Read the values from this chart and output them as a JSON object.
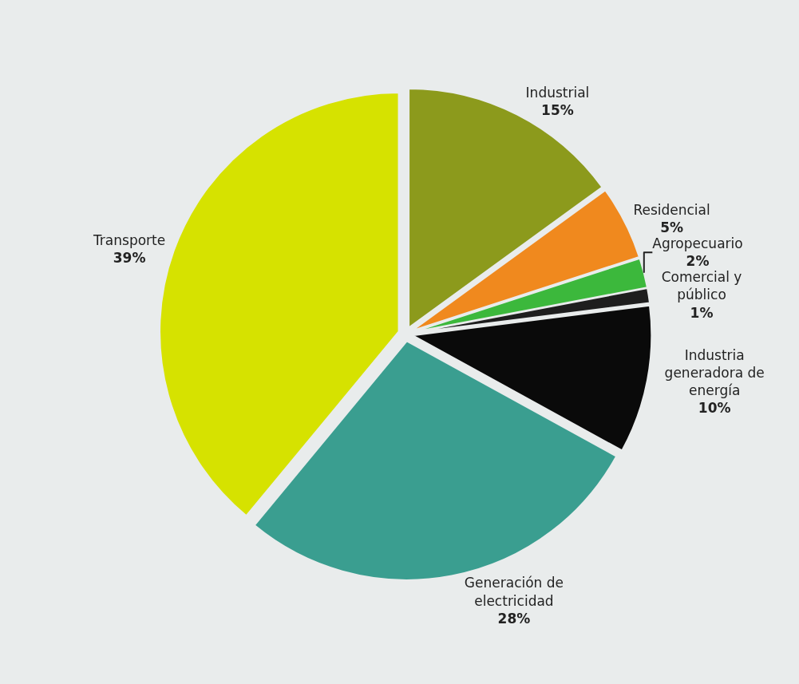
{
  "chart_data": {
    "type": "pie",
    "categories": [
      "Industrial",
      "Residencial",
      "Agropecuario",
      "Comercial y público",
      "Industria generadora de energía",
      "Generación de electricidad",
      "Transporte"
    ],
    "values": [
      15,
      5,
      2,
      1,
      10,
      28,
      39
    ],
    "value_labels": [
      "15%",
      "5%",
      "2%",
      "1%",
      "10%",
      "28%",
      "39%"
    ],
    "colors": [
      "#8c9a1c",
      "#f0891e",
      "#3cb83c",
      "#1e1e1e",
      "#0a0a0a",
      "#3a9e90",
      "#d6e200"
    ],
    "legend": false
  }
}
